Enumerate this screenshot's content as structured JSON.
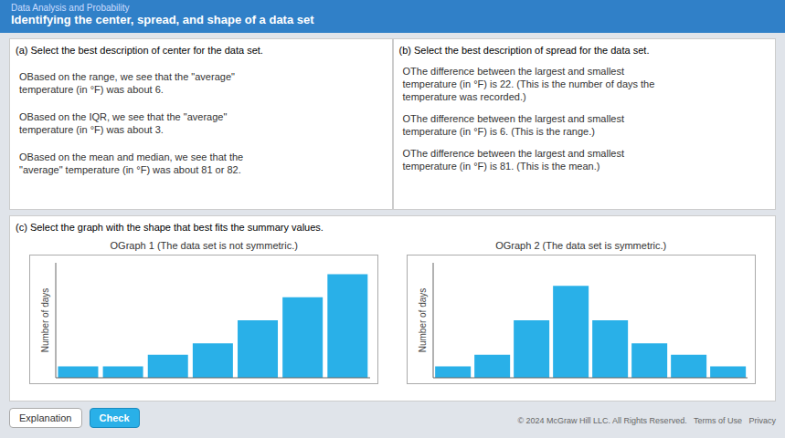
{
  "chart_data": [
    {
      "type": "bar",
      "title": "OGraph 1 (The data set is not symmetric.)",
      "categories": [
        null,
        null,
        null,
        null,
        null,
        null,
        null
      ],
      "values": [
        1,
        1,
        2,
        3,
        5,
        7,
        9
      ],
      "color": "#29b0e8",
      "y_label": "Number of days",
      "ylim": [
        0,
        10
      ],
      "tick_labels": false,
      "annotations": [
        "Identifying the center, spread, and shape of a data set",
        "Data Analysis and Probability",
        "(a) Select the best description of center for the data set.",
        "OBased on the range, we see that the \"average\"\ntemperature (in °F) was about 6.",
        "OBased on the IQR, we see that the \"average\"\ntemperature (in °F) was about 3.",
        "OBased on the mean and median, we see that the\n\"average\" temperature (in °F) was about 81 or 82.",
        "(b) Select the best description of spread for the data set.",
        "OThe difference between the largest and smallest\ntemperature (in °F) is 22. (This is the number of days the\ntemperature was recorded.)",
        "OThe difference between the largest and smallest\ntemperature (in °F) is 6. (This is the range.)",
        "OThe difference between the largest and smallest\ntemperature (in °F) is 81. (This is the mean.)",
        "(c) Select the graph with the shape that best fits the summary values.",
        "Explanation",
        "Check",
        "© 2024 McGraw Hill LLC. All Rights Reserved.   Terms of Use   Privacy"
      ]
    },
    {
      "type": "bar",
      "title": "OGraph 2 (The data set is symmetric.)",
      "categories": [
        null,
        null,
        null,
        null,
        null,
        null,
        null,
        null
      ],
      "values": [
        1,
        2,
        5,
        8,
        5,
        3,
        2,
        1
      ],
      "color": "#29b0e8",
      "y_label": "Number of days",
      "ylim": [
        0,
        10
      ],
      "tick_labels": false
    }
  ]
}
